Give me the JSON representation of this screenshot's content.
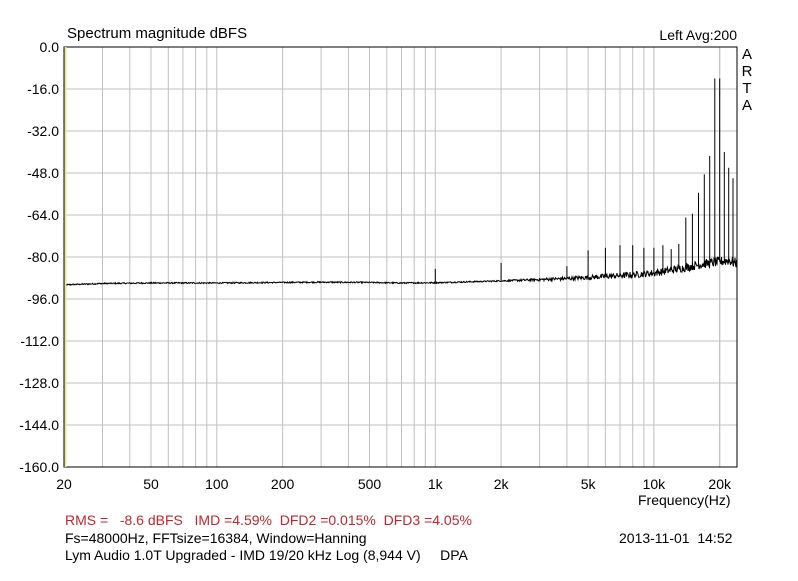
{
  "chart_data": {
    "type": "line",
    "title": "Spectrum magnitude dBFS",
    "channel_label": "Left  Avg:200",
    "brand_letters": [
      "A",
      "R",
      "T",
      "A"
    ],
    "xlabel": "Frequency(Hz)",
    "ylabel": "",
    "x_scale": "log",
    "xlim": [
      20,
      24000
    ],
    "ylim": [
      -160,
      0
    ],
    "grid": true,
    "y_ticks": [
      "0.0",
      "-16.0",
      "-32.0",
      "-48.0",
      "-64.0",
      "-80.0",
      "-96.0",
      "-112.0",
      "-128.0",
      "-144.0",
      "-160.0"
    ],
    "x_tick_labels": [
      {
        "value": 20,
        "label": "20"
      },
      {
        "value": 50,
        "label": "50"
      },
      {
        "value": 100,
        "label": "100"
      },
      {
        "value": 200,
        "label": "200"
      },
      {
        "value": 500,
        "label": "500"
      },
      {
        "value": 1000,
        "label": "1k"
      },
      {
        "value": 2000,
        "label": "2k"
      },
      {
        "value": 5000,
        "label": "5k"
      },
      {
        "value": 10000,
        "label": "10k"
      },
      {
        "value": 20000,
        "label": "20k"
      }
    ],
    "series": [
      {
        "type": "noise-floor",
        "x": [
          20,
          30,
          50,
          100,
          200,
          300,
          500,
          700,
          1000,
          1500,
          2000,
          3000,
          4000,
          5000,
          6000,
          8000,
          10000,
          12000,
          14000,
          16000,
          18000,
          20000,
          22000,
          24000
        ],
        "values": [
          -90.6,
          -90.1,
          -89.9,
          -89.9,
          -89.7,
          -89.6,
          -89.7,
          -89.9,
          -89.8,
          -89.4,
          -89.1,
          -88.6,
          -88.2,
          -87.8,
          -87.4,
          -86.8,
          -86.1,
          -85.0,
          -84.0,
          -83.0,
          -82.3,
          -81.8,
          -81.3,
          -82.5
        ]
      },
      {
        "type": "peaks",
        "x": [
          1000,
          2000,
          4000,
          5000,
          6000,
          7000,
          8000,
          9000,
          10000,
          11000,
          12000,
          13000,
          14000,
          15000,
          16000,
          17000,
          18000,
          19000,
          20000,
          21000,
          22000,
          23000
        ],
        "values": [
          -84.5,
          -82.3,
          -83.5,
          -77.5,
          -76.5,
          -75.5,
          -75.5,
          -76.5,
          -76.5,
          -75.5,
          -77.0,
          -75.0,
          -65.0,
          -63.5,
          -55.5,
          -48.5,
          -41.5,
          -12.0,
          -12.0,
          -40.0,
          -46.0,
          -50.0
        ]
      }
    ]
  },
  "footer": {
    "measurements": "RMS =   -8.6 dBFS   IMD =4.59%  DFD2 =0.015%  DFD3 =4.05%",
    "settings": "Fs=48000Hz, FFTsize=16384, Window=Hanning",
    "device": "Lym Audio 1.0T Upgraded - IMD 19/20 kHz Log (8,944 V)     DPA",
    "timestamp": "2013-11-01  14:52"
  },
  "colors": {
    "trace": "#000000",
    "grid": "#c0c0c0",
    "measurements_text": "#c0272d",
    "left_axis_accent": "#e8e6a0"
  }
}
